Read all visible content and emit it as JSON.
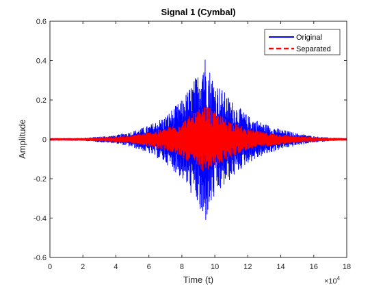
{
  "chart_data": {
    "type": "line",
    "title": "Signal 1 (Cymbal)",
    "xlabel": "Time (t)",
    "ylabel": "Amplitude",
    "x_exponent_base": "×10",
    "x_exponent_power": "4",
    "xlim": [
      0,
      18
    ],
    "ylim": [
      -0.6,
      0.6
    ],
    "xticks": [
      0,
      2,
      4,
      6,
      8,
      10,
      12,
      14,
      16,
      18
    ],
    "yticks": [
      -0.6,
      -0.4,
      -0.2,
      0,
      0.2,
      0.4,
      0.6
    ],
    "ytick_labels": [
      "-0.6",
      "-0.4",
      "-0.2",
      "0",
      "0.2",
      "0.4",
      "0.6"
    ],
    "legend_position": "top-right",
    "series": [
      {
        "name": "Original",
        "color": "#0000ff",
        "style": "solid",
        "envelope": [
          [
            0,
            0.005
          ],
          [
            2,
            0.006
          ],
          [
            4,
            0.02
          ],
          [
            5,
            0.04
          ],
          [
            6,
            0.07
          ],
          [
            7,
            0.12
          ],
          [
            8,
            0.2
          ],
          [
            8.5,
            0.27
          ],
          [
            9,
            0.34
          ],
          [
            9.3,
            0.47
          ],
          [
            9.6,
            0.38
          ],
          [
            10,
            0.3
          ],
          [
            11,
            0.2
          ],
          [
            12,
            0.12
          ],
          [
            13,
            0.08
          ],
          [
            14,
            0.05
          ],
          [
            15,
            0.03
          ],
          [
            16,
            0.015
          ],
          [
            17,
            0.007
          ],
          [
            18,
            0.005
          ]
        ]
      },
      {
        "name": "Separated",
        "color": "#ff0000",
        "style": "dashed",
        "envelope": [
          [
            0,
            0.004
          ],
          [
            2,
            0.005
          ],
          [
            4,
            0.012
          ],
          [
            5,
            0.02
          ],
          [
            6,
            0.035
          ],
          [
            7,
            0.055
          ],
          [
            8,
            0.09
          ],
          [
            8.5,
            0.12
          ],
          [
            9,
            0.15
          ],
          [
            9.5,
            0.17
          ],
          [
            10,
            0.14
          ],
          [
            11,
            0.09
          ],
          [
            12,
            0.05
          ],
          [
            13,
            0.035
          ],
          [
            14,
            0.025
          ],
          [
            15,
            0.015
          ],
          [
            16,
            0.01
          ],
          [
            17,
            0.006
          ],
          [
            18,
            0.004
          ]
        ]
      }
    ]
  }
}
